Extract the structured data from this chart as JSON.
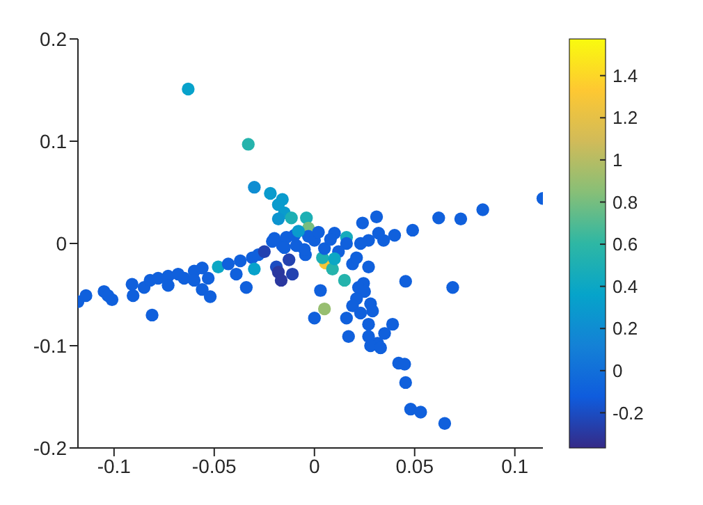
{
  "chart_data": {
    "type": "scatter",
    "marker": "circle",
    "xlim": [
      -0.118,
      0.114
    ],
    "xticks": [
      -0.1,
      -0.05,
      0,
      0.05,
      0.1
    ],
    "ylim": [
      -0.2,
      0.2
    ],
    "yticks": [
      -0.2,
      -0.1,
      0,
      0.1,
      0.2
    ],
    "clim": [
      -0.367,
      1.574
    ],
    "cticks": [
      -0.2,
      0,
      0.2,
      0.4,
      0.6,
      0.8,
      1,
      1.2,
      1.4
    ],
    "series": [
      {
        "x": [
          -0.063,
          -0.033,
          -0.03,
          -0.022,
          -0.016,
          -0.018,
          -0.015,
          -0.018,
          -0.0115,
          -0.004,
          -0.003,
          0.114,
          0.084,
          0.073,
          0.062,
          0.049,
          0.031,
          0.024,
          0.04,
          0.0345,
          0.032,
          0.027,
          0.023,
          0.016,
          0.01,
          -0.118,
          -0.114,
          -0.105,
          -0.101,
          -0.103,
          -0.091,
          -0.0905,
          -0.085,
          -0.081,
          -0.082,
          -0.078,
          -0.073,
          -0.073,
          -0.068,
          -0.065,
          -0.06,
          -0.06,
          -0.056,
          -0.056,
          -0.052,
          -0.053,
          -0.048,
          -0.043,
          -0.039,
          -0.037,
          -0.034,
          -0.031,
          -0.03,
          -0.028,
          -0.025,
          -0.021,
          -0.019,
          -0.018,
          -0.0166,
          -0.011,
          -0.0127,
          -0.0045,
          0,
          -0.009,
          -0.016,
          -0.003,
          -0.014,
          0.005,
          0.0055,
          0.004,
          0.009,
          0.015,
          0.003,
          0.016,
          0.019,
          0.021,
          0.027,
          0.0245,
          0.022,
          0.025,
          0.021,
          0.019,
          0.016,
          0.028,
          0.029,
          0.023,
          0.039,
          0.027,
          0.017,
          0.035,
          0.027,
          0.0315,
          0.028,
          0.033,
          0.042,
          0.045,
          0.0455,
          0.048,
          0.053,
          0.065,
          0.0455,
          0.069,
          -0.02,
          -0.01,
          0,
          0.005,
          -0.005,
          0.008,
          0.012,
          -0.015,
          0.002,
          -0.008,
          0.01
        ],
        "values": [
          0.151,
          0.097,
          0.055,
          0.049,
          0.043,
          0.038,
          0.03,
          0.024,
          0.025,
          0.025,
          0.015,
          0.044,
          0.033,
          0.024,
          0.025,
          0.013,
          0.026,
          0.02,
          0.008,
          0.003,
          0.01,
          0.003,
          0,
          0.006,
          0.01,
          -0.057,
          -0.051,
          -0.047,
          -0.055,
          -0.051,
          -0.04,
          -0.051,
          -0.043,
          -0.07,
          -0.036,
          -0.034,
          -0.032,
          -0.041,
          -0.03,
          -0.034,
          -0.027,
          -0.036,
          -0.024,
          -0.045,
          -0.052,
          -0.034,
          -0.023,
          -0.02,
          -0.03,
          -0.017,
          -0.043,
          -0.014,
          -0.025,
          -0.011,
          -0.008,
          0.002,
          -0.023,
          -0.028,
          -0.036,
          -0.03,
          -0.016,
          -0.011,
          -0.073,
          -0.002,
          -0.002,
          0.007,
          0.006,
          -0.064,
          -0.019,
          -0.014,
          -0.025,
          -0.036,
          -0.046,
          0,
          -0.02,
          -0.014,
          -0.023,
          -0.039,
          -0.043,
          -0.047,
          -0.054,
          -0.061,
          -0.073,
          -0.059,
          -0.066,
          -0.068,
          -0.079,
          -0.079,
          -0.091,
          -0.088,
          -0.091,
          -0.0975,
          -0.1,
          -0.102,
          -0.117,
          -0.118,
          -0.136,
          -0.162,
          -0.165,
          -0.176,
          -0.037,
          -0.043,
          0.005,
          0.008,
          0.003,
          -0.005,
          -0.006,
          0.004,
          -0.008,
          -0.004,
          0.011,
          0.012,
          -0.015
        ],
        "cvalues": [
          0.35,
          0.55,
          0.2,
          0.3,
          0.3,
          0.3,
          0.3,
          0.25,
          0.5,
          0.5,
          0.8,
          -0.1,
          -0.1,
          -0.1,
          -0.1,
          -0.1,
          -0.1,
          -0.1,
          -0.1,
          -0.1,
          -0.1,
          -0.1,
          -0.1,
          0.45,
          -0.1,
          -0.1,
          -0.1,
          -0.1,
          -0.1,
          -0.1,
          -0.1,
          -0.1,
          -0.1,
          -0.1,
          -0.1,
          -0.1,
          -0.1,
          -0.1,
          -0.1,
          -0.1,
          -0.1,
          -0.1,
          -0.1,
          -0.1,
          -0.1,
          -0.1,
          0.4,
          -0.1,
          -0.1,
          -0.1,
          -0.1,
          -0.1,
          0.35,
          -0.1,
          -0.25,
          -0.1,
          -0.2,
          -0.3,
          -0.3,
          -0.25,
          -0.25,
          -0.1,
          -0.1,
          -0.1,
          -0.1,
          -0.1,
          -0.1,
          0.9,
          1.3,
          0.5,
          0.55,
          0.55,
          -0.1,
          -0.1,
          -0.1,
          -0.1,
          -0.1,
          -0.1,
          -0.1,
          -0.1,
          -0.1,
          -0.1,
          -0.1,
          -0.1,
          -0.1,
          -0.1,
          -0.1,
          -0.1,
          -0.1,
          -0.1,
          -0.1,
          -0.1,
          -0.1,
          -0.1,
          -0.1,
          -0.1,
          -0.1,
          -0.1,
          -0.1,
          -0.1,
          -0.1,
          -0.1,
          -0.1,
          -0.1,
          -0.1,
          -0.1,
          -0.1,
          -0.1,
          -0.1,
          -0.1,
          -0.1,
          0.3,
          0.4
        ]
      }
    ]
  }
}
